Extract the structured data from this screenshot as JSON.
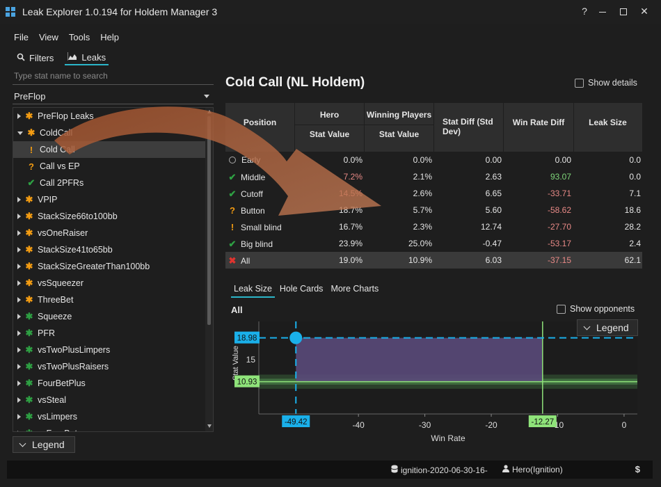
{
  "window": {
    "title": "Leak Explorer 1.0.194 for Holdem Manager 3",
    "help_label": "?",
    "minimize_label": "—",
    "close_label": "✕"
  },
  "menu": {
    "file": "File",
    "view": "View",
    "tools": "Tools",
    "help": "Help"
  },
  "top_tabs": {
    "filters": "Filters",
    "leaks": "Leaks"
  },
  "sidebar": {
    "search_placeholder": "Type stat name to search",
    "category_selected": "PreFlop",
    "legend_label": "Legend",
    "tree": [
      {
        "label": "PreFlop Leaks",
        "icon": "asterisk-orange",
        "expander": "collapsed",
        "indent": 0
      },
      {
        "label": "ColdCall",
        "icon": "asterisk-orange",
        "expander": "expanded",
        "indent": 0
      },
      {
        "label": "Cold Call",
        "icon": "exclamation-orange",
        "expander": "none",
        "indent": 1,
        "selected": true
      },
      {
        "label": "Call vs EP",
        "icon": "question-orange",
        "expander": "none",
        "indent": 1
      },
      {
        "label": "Call 2PFRs",
        "icon": "check-green",
        "expander": "none",
        "indent": 1
      },
      {
        "label": "VPIP",
        "icon": "asterisk-orange",
        "expander": "collapsed",
        "indent": 0
      },
      {
        "label": "StackSize66to100bb",
        "icon": "asterisk-orange",
        "expander": "collapsed",
        "indent": 0
      },
      {
        "label": "vsOneRaiser",
        "icon": "asterisk-orange",
        "expander": "collapsed",
        "indent": 0
      },
      {
        "label": "StackSize41to65bb",
        "icon": "asterisk-orange",
        "expander": "collapsed",
        "indent": 0
      },
      {
        "label": "StackSizeGreaterThan100bb",
        "icon": "asterisk-orange",
        "expander": "collapsed",
        "indent": 0
      },
      {
        "label": "vsSqueezer",
        "icon": "asterisk-orange",
        "expander": "collapsed",
        "indent": 0
      },
      {
        "label": "ThreeBet",
        "icon": "asterisk-orange",
        "expander": "collapsed",
        "indent": 0
      },
      {
        "label": "Squeeze",
        "icon": "asterisk-green",
        "expander": "collapsed",
        "indent": 0
      },
      {
        "label": "PFR",
        "icon": "asterisk-green",
        "expander": "collapsed",
        "indent": 0
      },
      {
        "label": "vsTwoPlusLimpers",
        "icon": "asterisk-green",
        "expander": "collapsed",
        "indent": 0
      },
      {
        "label": "vsTwoPlusRaisers",
        "icon": "asterisk-green",
        "expander": "collapsed",
        "indent": 0
      },
      {
        "label": "FourBetPlus",
        "icon": "asterisk-green",
        "expander": "collapsed",
        "indent": 0
      },
      {
        "label": "vsSteal",
        "icon": "asterisk-green",
        "expander": "collapsed",
        "indent": 0
      },
      {
        "label": "vsLimpers",
        "icon": "asterisk-green",
        "expander": "collapsed",
        "indent": 0
      },
      {
        "label": "vsFourBet",
        "icon": "asterisk-green",
        "expander": "collapsed",
        "indent": 0
      }
    ]
  },
  "main": {
    "title": "Cold Call  (NL Holdem)",
    "show_details_label": "Show details",
    "table": {
      "headers": {
        "position": "Position",
        "hero": "Hero",
        "hero_sub": "Stat Value",
        "winning": "Winning Players",
        "winning_sub": "Stat Value",
        "stat_diff": "Stat Diff (Std Dev)",
        "win_rate_diff": "Win Rate Diff",
        "leak_size": "Leak Size"
      },
      "rows": [
        {
          "position": "Early",
          "icon": "circle-gray",
          "hero": "0.0%",
          "winning": "0.0%",
          "stat_diff": "0.00",
          "win_rate_diff": "0.00",
          "wr_sign": "zero",
          "leak_size": "0.0"
        },
        {
          "position": "Middle",
          "icon": "check-green",
          "hero": "7.2%",
          "winning": "2.1%",
          "stat_diff": "2.63",
          "win_rate_diff": "93.07",
          "wr_sign": "pos",
          "leak_size": "0.0"
        },
        {
          "position": "Cutoff",
          "icon": "check-green",
          "hero": "14.5%",
          "winning": "2.6%",
          "stat_diff": "6.65",
          "win_rate_diff": "-33.71",
          "wr_sign": "neg",
          "leak_size": "7.1"
        },
        {
          "position": "Button",
          "icon": "question-orange",
          "hero": "18.7%",
          "winning": "5.7%",
          "stat_diff": "5.60",
          "win_rate_diff": "-58.62",
          "wr_sign": "neg",
          "leak_size": "18.6"
        },
        {
          "position": "Small blind",
          "icon": "exclamation-orange",
          "hero": "16.7%",
          "winning": "2.3%",
          "stat_diff": "12.74",
          "win_rate_diff": "-27.70",
          "wr_sign": "neg",
          "leak_size": "28.2"
        },
        {
          "position": "Big blind",
          "icon": "check-green",
          "hero": "23.9%",
          "winning": "25.0%",
          "stat_diff": "-0.47",
          "win_rate_diff": "-53.17",
          "wr_sign": "neg",
          "leak_size": "2.4"
        },
        {
          "position": "All",
          "icon": "cross-red",
          "hero": "19.0%",
          "winning": "10.9%",
          "stat_diff": "6.03",
          "win_rate_diff": "-37.15",
          "wr_sign": "neg",
          "leak_size": "62.1",
          "total": true
        }
      ]
    },
    "chart_tabs": {
      "leak_size": "Leak Size",
      "hole_cards": "Hole Cards",
      "more_charts": "More Charts"
    },
    "chart_header": "All",
    "show_opponents_label": "Show opponents",
    "legend_label": "Legend"
  },
  "chart_data": {
    "type": "scatter",
    "title": "All",
    "xlabel": "Win Rate",
    "ylabel": "Stat Value",
    "xlim": [
      -55,
      2
    ],
    "ylim": [
      5,
      22
    ],
    "x_ticks": [
      -40,
      -30,
      -20,
      -10,
      0
    ],
    "y_ticks": [
      15
    ],
    "hero_point": {
      "x": -49.42,
      "y": 18.98
    },
    "hero_x_label": "-49.42",
    "hero_y_label": "18.98",
    "winning_x_label": "-12.27",
    "winning_y_label": "10.93",
    "winning_x": -12.27,
    "winning_y": 10.93,
    "colors": {
      "hero": "#1ab0ea",
      "winning": "#8fe37a",
      "leak_area": "#5a4a7a",
      "band": "#2f4a2f"
    }
  },
  "statusbar": {
    "database": "ignition-2020-06-30-16-",
    "player": "Hero(Ignition)",
    "currency": "$"
  }
}
